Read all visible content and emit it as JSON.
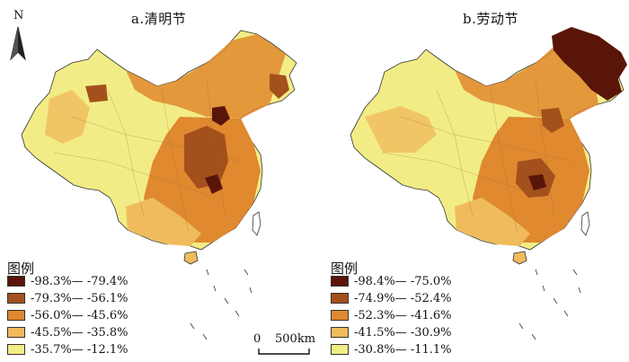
{
  "north_label": "N",
  "scale": {
    "zero": "0",
    "distance": "500km"
  },
  "colors": {
    "c1": "#5a1509",
    "c2": "#a4501c",
    "c3": "#e0892f",
    "c4": "#f0bb5c",
    "c5": "#f2ec86",
    "border": "#8a6a3a",
    "outline": "#333333"
  },
  "maps": [
    {
      "title": "a.清明节",
      "legend_title": "图例",
      "legend": [
        {
          "label": "-98.3%— -79.4%",
          "color": "#5a1509"
        },
        {
          "label": "-79.3%— -56.1%",
          "color": "#a4501c"
        },
        {
          "label": "-56.0%— -45.6%",
          "color": "#e0892f"
        },
        {
          "label": "-45.5%— -35.8%",
          "color": "#f0bb5c"
        },
        {
          "label": "-35.7%— -12.1%",
          "color": "#f2ec86"
        }
      ]
    },
    {
      "title": "b.劳动节",
      "legend_title": "图例",
      "legend": [
        {
          "label": "-98.4%— -75.0%",
          "color": "#5a1509"
        },
        {
          "label": "-74.9%— -52.4%",
          "color": "#a4501c"
        },
        {
          "label": "-52.3%— -41.6%",
          "color": "#e0892f"
        },
        {
          "label": "-41.5%— -30.9%",
          "color": "#f0bb5c"
        },
        {
          "label": "-30.8%— -11.1%",
          "color": "#f2ec86"
        }
      ]
    }
  ]
}
